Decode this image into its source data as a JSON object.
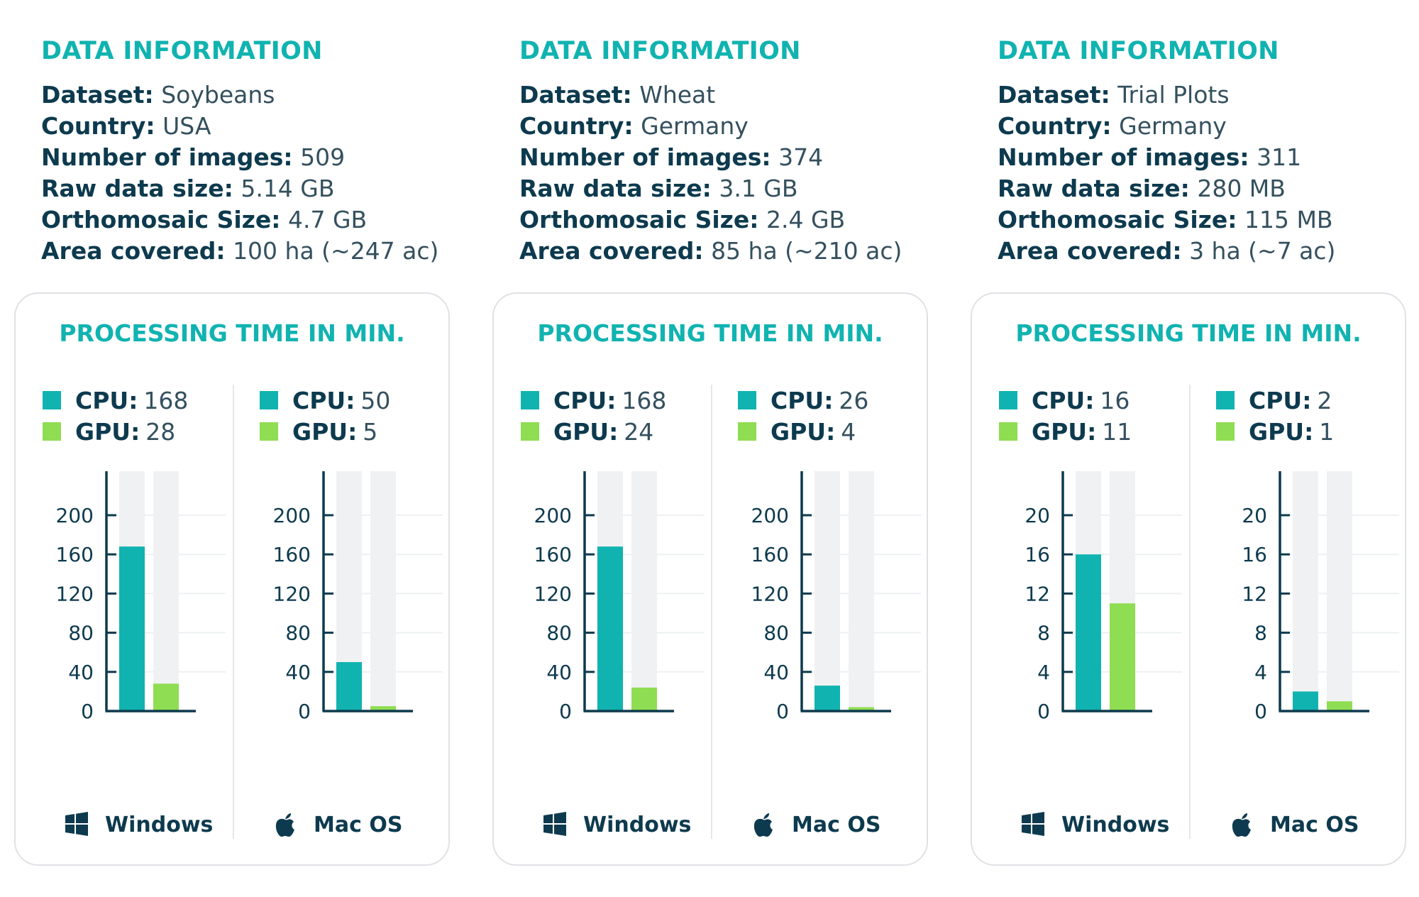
{
  "colors": {
    "accent": "#10b3b0",
    "cpu": "#10b3b0",
    "gpu": "#8fdd52",
    "text": "#0d3a4e",
    "bar_bg": "#f0f1f3"
  },
  "labels": {
    "dataset": "Dataset:",
    "country": "Country:",
    "images": "Number of images:",
    "raw": "Raw data size:",
    "ortho": "Orthomosaic Size:",
    "area": "Area covered:",
    "cpu": "CPU:",
    "gpu": "GPU:"
  },
  "columns": [
    {
      "info_title": "DATA INFORMATION",
      "dataset": "Soybeans",
      "country": "USA",
      "images": "509",
      "raw": "5.14 GB",
      "ortho": "4.7 GB",
      "area": "100 ha (~247 ac)",
      "card_title": "PROCESSING TIME IN MIN.",
      "panels": [
        {
          "os": "Windows",
          "icon": "windows-icon",
          "cpu": "168",
          "gpu": "28"
        },
        {
          "os": "Mac OS",
          "icon": "apple-icon",
          "cpu": "50",
          "gpu": "5"
        }
      ]
    },
    {
      "info_title": "DATA INFORMATION",
      "dataset": "Wheat",
      "country": "Germany",
      "images": "374",
      "raw": "3.1 GB",
      "ortho": "2.4 GB",
      "area": "85 ha (~210 ac)",
      "card_title": "PROCESSING TIME IN MIN.",
      "panels": [
        {
          "os": "Windows",
          "icon": "windows-icon",
          "cpu": "168",
          "gpu": "24"
        },
        {
          "os": "Mac OS",
          "icon": "apple-icon",
          "cpu": "26",
          "gpu": "4"
        }
      ]
    },
    {
      "info_title": "DATA INFORMATION",
      "dataset": "Trial Plots",
      "country": "Germany",
      "images": "311",
      "raw": "280 MB",
      "ortho": "115 MB",
      "area": "3 ha (~7 ac)",
      "card_title": "PROCESSING TIME IN MIN.",
      "panels": [
        {
          "os": "Windows",
          "icon": "windows-icon",
          "cpu": "16",
          "gpu": "11"
        },
        {
          "os": "Mac OS",
          "icon": "apple-icon",
          "cpu": "2",
          "gpu": "1"
        }
      ]
    }
  ],
  "chart_data": [
    {
      "type": "bar",
      "dataset": "Soybeans",
      "os": "Windows",
      "categories": [
        "CPU",
        "GPU"
      ],
      "values": [
        168,
        28
      ],
      "ylim": [
        0,
        200
      ],
      "yticks": [
        0,
        40,
        80,
        120,
        160,
        200
      ],
      "grid": true
    },
    {
      "type": "bar",
      "dataset": "Soybeans",
      "os": "Mac OS",
      "categories": [
        "CPU",
        "GPU"
      ],
      "values": [
        50,
        5
      ],
      "ylim": [
        0,
        200
      ],
      "yticks": [
        0,
        40,
        80,
        120,
        160,
        200
      ],
      "grid": true
    },
    {
      "type": "bar",
      "dataset": "Wheat",
      "os": "Windows",
      "categories": [
        "CPU",
        "GPU"
      ],
      "values": [
        168,
        24
      ],
      "ylim": [
        0,
        200
      ],
      "yticks": [
        0,
        40,
        80,
        120,
        160,
        200
      ],
      "grid": true
    },
    {
      "type": "bar",
      "dataset": "Wheat",
      "os": "Mac OS",
      "categories": [
        "CPU",
        "GPU"
      ],
      "values": [
        26,
        4
      ],
      "ylim": [
        0,
        200
      ],
      "yticks": [
        0,
        40,
        80,
        120,
        160,
        200
      ],
      "grid": true
    },
    {
      "type": "bar",
      "dataset": "Trial Plots",
      "os": "Windows",
      "categories": [
        "CPU",
        "GPU"
      ],
      "values": [
        16,
        11
      ],
      "ylim": [
        0,
        20
      ],
      "yticks": [
        0,
        4,
        8,
        12,
        16,
        20
      ],
      "grid": true
    },
    {
      "type": "bar",
      "dataset": "Trial Plots",
      "os": "Mac OS",
      "categories": [
        "CPU",
        "GPU"
      ],
      "values": [
        2,
        1
      ],
      "ylim": [
        0,
        20
      ],
      "yticks": [
        0,
        4,
        8,
        12,
        16,
        20
      ],
      "grid": true
    }
  ]
}
